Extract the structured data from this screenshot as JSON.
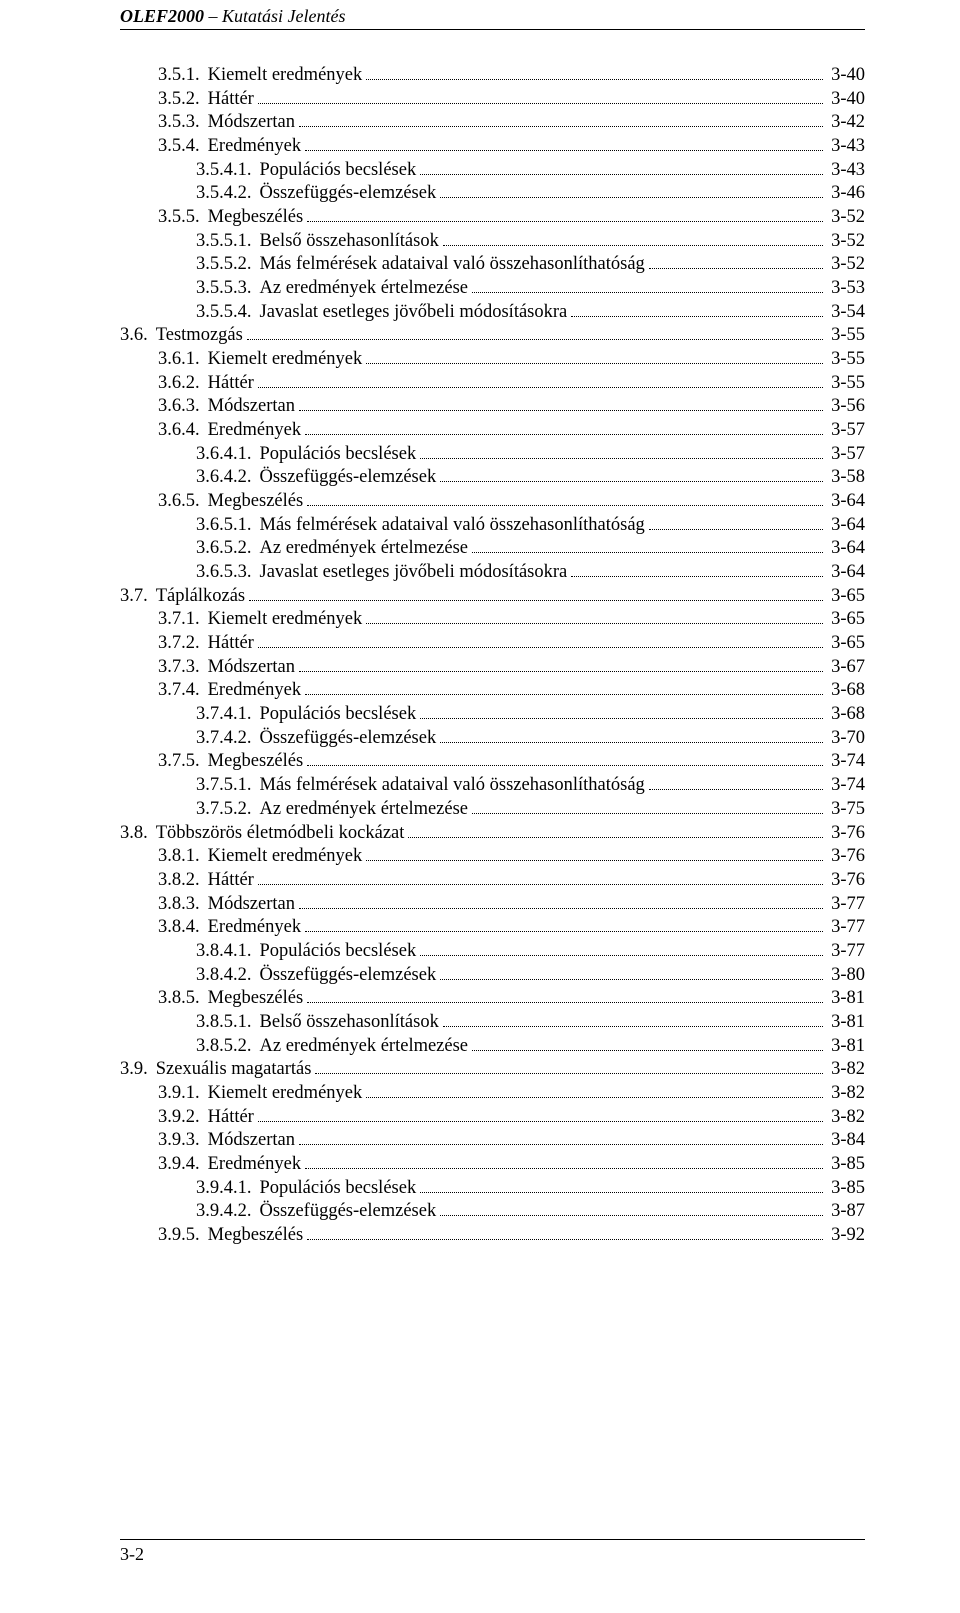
{
  "header": {
    "prefix_bold": "OLEF2000",
    "suffix": " – Kutatási Jelentés"
  },
  "footer": {
    "page_number": "3-2"
  },
  "toc": [
    {
      "level": 1,
      "num": "3.5.1.",
      "title": "Kiemelt eredmények",
      "page": "3-40"
    },
    {
      "level": 1,
      "num": "3.5.2.",
      "title": "Háttér",
      "page": "3-40"
    },
    {
      "level": 1,
      "num": "3.5.3.",
      "title": "Módszertan",
      "page": "3-42"
    },
    {
      "level": 1,
      "num": "3.5.4.",
      "title": "Eredmények",
      "page": "3-43"
    },
    {
      "level": 2,
      "num": "3.5.4.1.",
      "title": "Populációs becslések",
      "page": "3-43"
    },
    {
      "level": 2,
      "num": "3.5.4.2.",
      "title": "Összefüggés-elemzések",
      "page": "3-46"
    },
    {
      "level": 1,
      "num": "3.5.5.",
      "title": "Megbeszélés",
      "page": "3-52"
    },
    {
      "level": 2,
      "num": "3.5.5.1.",
      "title": "Belső összehasonlítások",
      "page": "3-52"
    },
    {
      "level": 2,
      "num": "3.5.5.2.",
      "title": "Más felmérések adataival való összehasonlíthatóság",
      "page": "3-52"
    },
    {
      "level": 2,
      "num": "3.5.5.3.",
      "title": "Az eredmények értelmezése",
      "page": "3-53"
    },
    {
      "level": 2,
      "num": "3.5.5.4.",
      "title": "Javaslat esetleges jövőbeli módosításokra",
      "page": "3-54"
    },
    {
      "level": 0,
      "num": "3.6.",
      "title": "Testmozgás",
      "page": "3-55"
    },
    {
      "level": 1,
      "num": "3.6.1.",
      "title": "Kiemelt eredmények",
      "page": "3-55"
    },
    {
      "level": 1,
      "num": "3.6.2.",
      "title": "Háttér",
      "page": "3-55"
    },
    {
      "level": 1,
      "num": "3.6.3.",
      "title": "Módszertan",
      "page": "3-56"
    },
    {
      "level": 1,
      "num": "3.6.4.",
      "title": "Eredmények",
      "page": "3-57"
    },
    {
      "level": 2,
      "num": "3.6.4.1.",
      "title": "Populációs becslések",
      "page": "3-57"
    },
    {
      "level": 2,
      "num": "3.6.4.2.",
      "title": "Összefüggés-elemzések",
      "page": "3-58"
    },
    {
      "level": 1,
      "num": "3.6.5.",
      "title": "Megbeszélés",
      "page": "3-64"
    },
    {
      "level": 2,
      "num": "3.6.5.1.",
      "title": "Más felmérések adataival való összehasonlíthatóság",
      "page": "3-64"
    },
    {
      "level": 2,
      "num": "3.6.5.2.",
      "title": "Az eredmények értelmezése",
      "page": "3-64"
    },
    {
      "level": 2,
      "num": "3.6.5.3.",
      "title": "Javaslat esetleges jövőbeli módosításokra",
      "page": "3-64"
    },
    {
      "level": 0,
      "num": "3.7.",
      "title": "Táplálkozás",
      "page": "3-65"
    },
    {
      "level": 1,
      "num": "3.7.1.",
      "title": "Kiemelt eredmények",
      "page": "3-65"
    },
    {
      "level": 1,
      "num": "3.7.2.",
      "title": "Háttér",
      "page": "3-65"
    },
    {
      "level": 1,
      "num": "3.7.3.",
      "title": "Módszertan",
      "page": "3-67"
    },
    {
      "level": 1,
      "num": "3.7.4.",
      "title": "Eredmények",
      "page": "3-68"
    },
    {
      "level": 2,
      "num": "3.7.4.1.",
      "title": "Populációs becslések",
      "page": "3-68"
    },
    {
      "level": 2,
      "num": "3.7.4.2.",
      "title": "Összefüggés-elemzések",
      "page": "3-70"
    },
    {
      "level": 1,
      "num": "3.7.5.",
      "title": "Megbeszélés",
      "page": "3-74"
    },
    {
      "level": 2,
      "num": "3.7.5.1.",
      "title": "Más felmérések adataival való összehasonlíthatóság",
      "page": "3-74"
    },
    {
      "level": 2,
      "num": "3.7.5.2.",
      "title": "Az eredmények értelmezése",
      "page": "3-75"
    },
    {
      "level": 0,
      "num": "3.8.",
      "title": "Többszörös életmódbeli kockázat",
      "page": "3-76"
    },
    {
      "level": 1,
      "num": "3.8.1.",
      "title": "Kiemelt eredmények",
      "page": "3-76"
    },
    {
      "level": 1,
      "num": "3.8.2.",
      "title": "Háttér",
      "page": "3-76"
    },
    {
      "level": 1,
      "num": "3.8.3.",
      "title": "Módszertan",
      "page": "3-77"
    },
    {
      "level": 1,
      "num": "3.8.4.",
      "title": "Eredmények",
      "page": "3-77"
    },
    {
      "level": 2,
      "num": "3.8.4.1.",
      "title": "Populációs becslések",
      "page": "3-77"
    },
    {
      "level": 2,
      "num": "3.8.4.2.",
      "title": "Összefüggés-elemzések",
      "page": "3-80"
    },
    {
      "level": 1,
      "num": "3.8.5.",
      "title": "Megbeszélés",
      "page": "3-81"
    },
    {
      "level": 2,
      "num": "3.8.5.1.",
      "title": "Belső összehasonlítások",
      "page": "3-81"
    },
    {
      "level": 2,
      "num": "3.8.5.2.",
      "title": "Az eredmények értelmezése",
      "page": "3-81"
    },
    {
      "level": 0,
      "num": "3.9.",
      "title": "Szexuális magatartás",
      "page": "3-82"
    },
    {
      "level": 1,
      "num": "3.9.1.",
      "title": "Kiemelt eredmények",
      "page": "3-82"
    },
    {
      "level": 1,
      "num": "3.9.2.",
      "title": "Háttér",
      "page": "3-82"
    },
    {
      "level": 1,
      "num": "3.9.3.",
      "title": "Módszertan",
      "page": "3-84"
    },
    {
      "level": 1,
      "num": "3.9.4.",
      "title": "Eredmények",
      "page": "3-85"
    },
    {
      "level": 2,
      "num": "3.9.4.1.",
      "title": "Populációs becslések",
      "page": "3-85"
    },
    {
      "level": 2,
      "num": "3.9.4.2.",
      "title": "Összefüggés-elemzések",
      "page": "3-87"
    },
    {
      "level": 1,
      "num": "3.9.5.",
      "title": "Megbeszélés",
      "page": "3-92"
    }
  ]
}
